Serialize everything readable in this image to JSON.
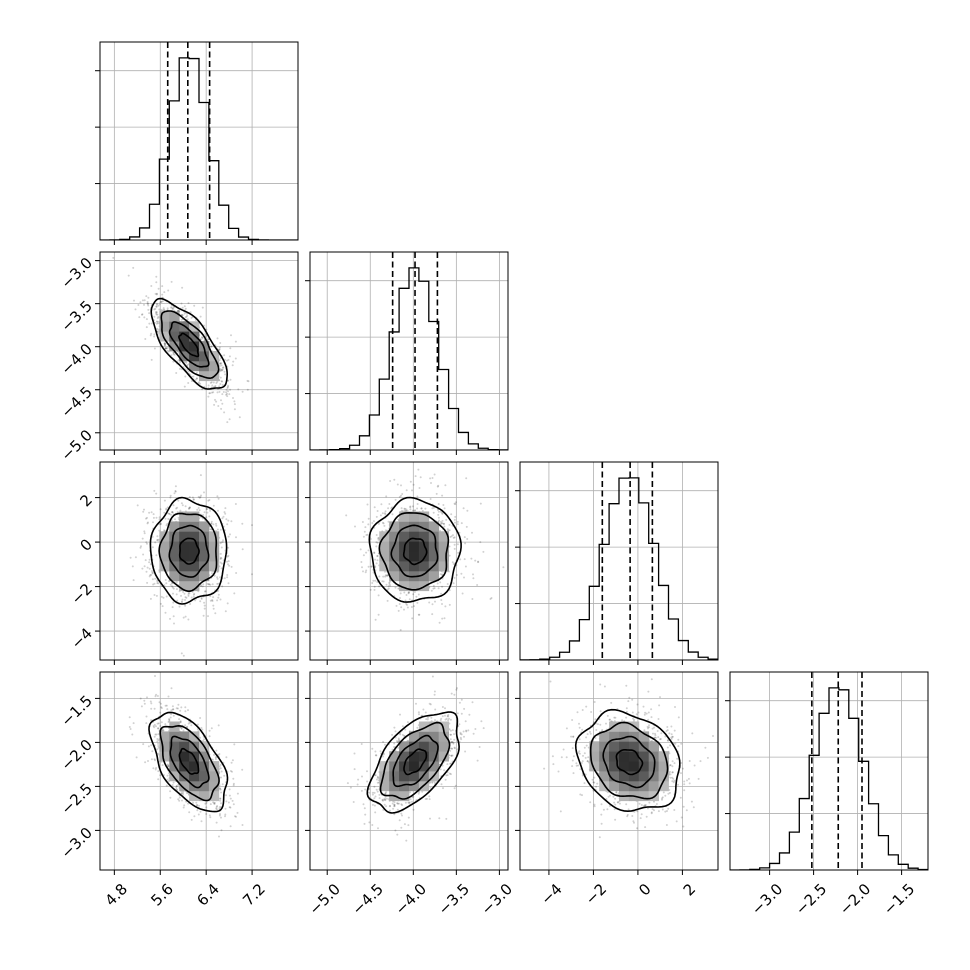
{
  "chart_data": {
    "type": "corner",
    "params": [
      {
        "center": 6.1,
        "sd": 0.33,
        "q16": 5.73,
        "q50": 6.08,
        "q84": 6.46,
        "range": [
          4.55,
          8.0
        ],
        "ticks": [
          4.8,
          5.6,
          6.4,
          7.2
        ],
        "tick_labels": [
          "4.8",
          "5.6",
          "6.4",
          "7.2"
        ]
      },
      {
        "center": -3.98,
        "sd": 0.26,
        "q16": -4.24,
        "q50": -3.98,
        "q84": -3.72,
        "range": [
          -5.2,
          -2.9
        ],
        "ticks": [
          -5.0,
          -4.5,
          -4.0,
          -3.5,
          -3.0
        ],
        "tick_labels": [
          "−5.0",
          "−4.5",
          "−4.0",
          "−3.5",
          "−3.0"
        ]
      },
      {
        "center": -0.4,
        "sd": 1.15,
        "q16": -1.6,
        "q50": -0.35,
        "q84": 0.65,
        "range": [
          -5.3,
          3.6
        ],
        "ticks": [
          -4,
          -2,
          0,
          2
        ],
        "tick_labels": [
          "−4",
          "−2",
          "0",
          "2"
        ]
      },
      {
        "center": -2.22,
        "sd": 0.28,
        "q16": -2.52,
        "q50": -2.22,
        "q84": -1.95,
        "range": [
          -3.45,
          -1.2
        ],
        "ticks": [
          -3.0,
          -2.5,
          -2.0,
          -1.5
        ],
        "tick_labels": [
          "−3.0",
          "−2.5",
          "−2.0",
          "−1.5"
        ]
      }
    ],
    "correlations": [
      [
        1,
        -0.72,
        0.0,
        -0.55
      ],
      [
        -0.72,
        1,
        0.0,
        0.55
      ],
      [
        0.0,
        0.0,
        1,
        -0.2
      ],
      [
        -0.55,
        0.55,
        -0.2,
        1
      ]
    ],
    "hist_bins": 20,
    "contour_levels": [
      0.5,
      1.0,
      1.5,
      2.0
    ],
    "grid": true
  }
}
